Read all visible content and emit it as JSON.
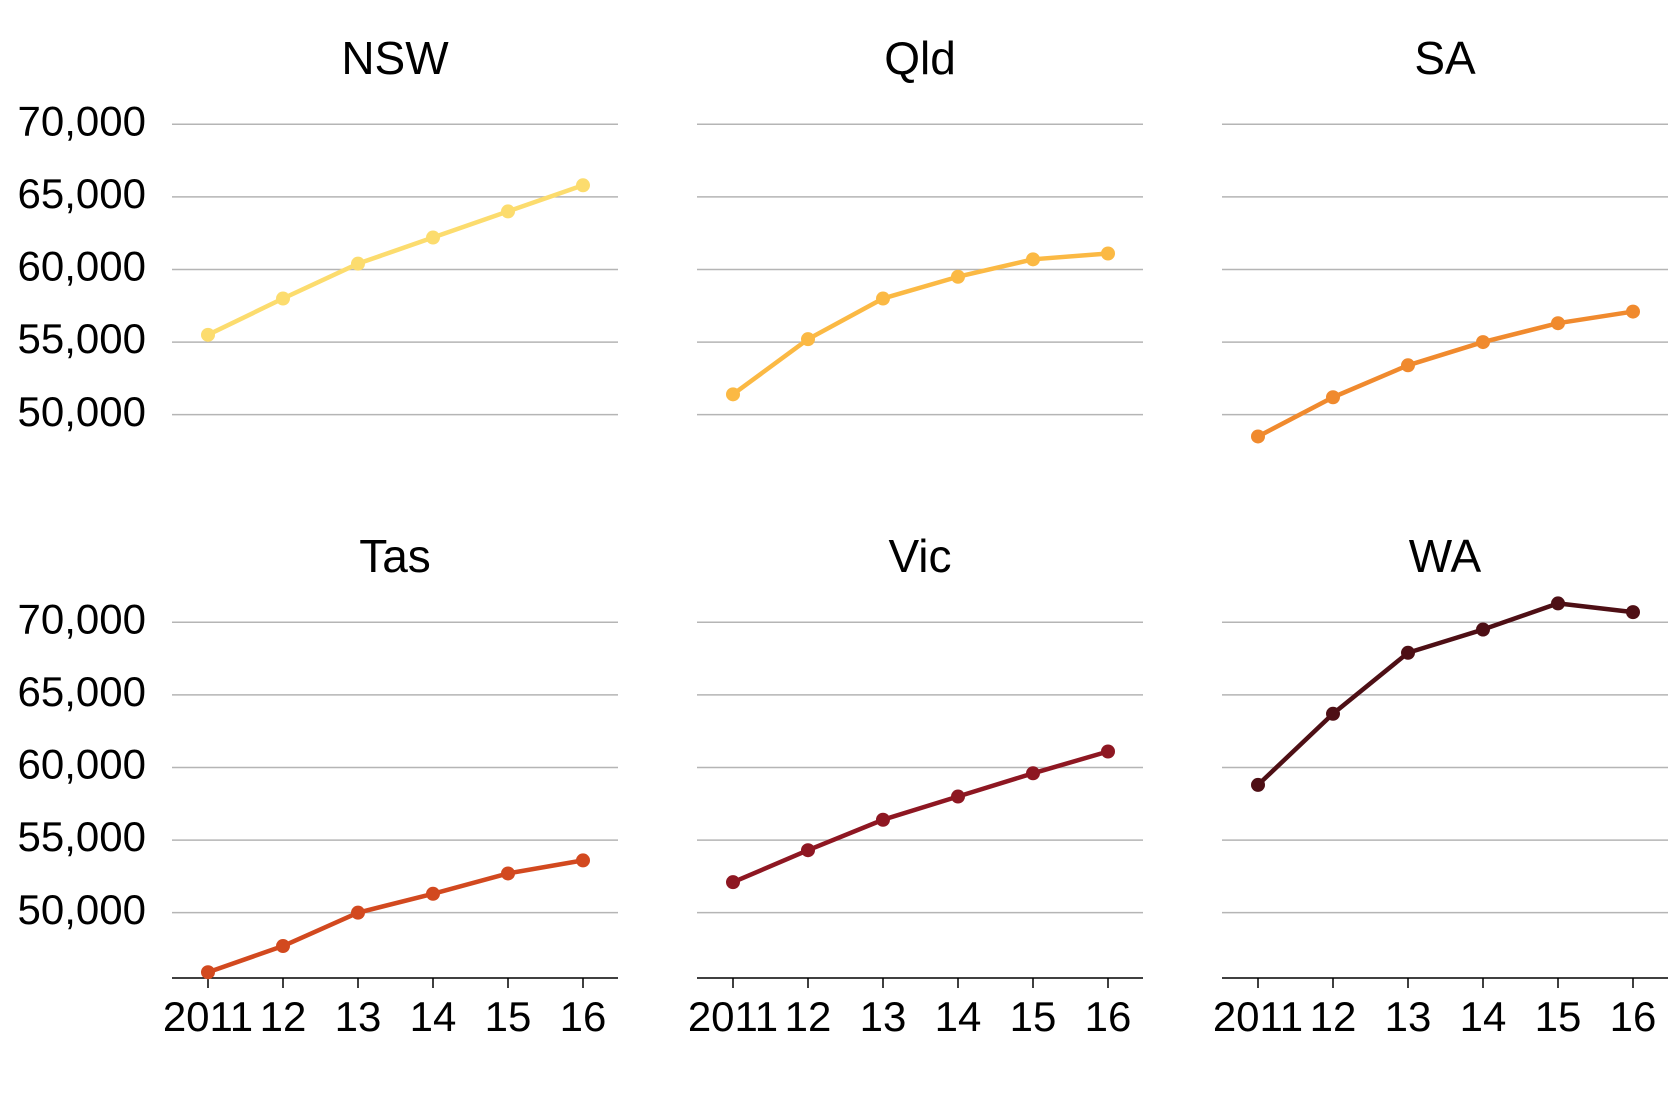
{
  "chart_data": {
    "type": "line",
    "layout": "small-multiples",
    "x": [
      "2011",
      "12",
      "13",
      "14",
      "15",
      "16"
    ],
    "y_ticks": [
      "50,000",
      "55,000",
      "60,000",
      "65,000",
      "70,000"
    ],
    "y_tick_values": [
      50000,
      55000,
      60000,
      65000,
      70000
    ],
    "ylim": [
      45500,
      72500
    ],
    "grid": true,
    "series": [
      {
        "name": "NSW",
        "color": "#fcdc6e",
        "values": [
          55500,
          58000,
          60400,
          62200,
          64000,
          65800
        ]
      },
      {
        "name": "Qld",
        "color": "#fbb944",
        "values": [
          51400,
          55200,
          58000,
          59500,
          60700,
          61100
        ]
      },
      {
        "name": "SA",
        "color": "#f08a2e",
        "values": [
          48500,
          51200,
          53400,
          55000,
          56300,
          57100
        ]
      },
      {
        "name": "Tas",
        "color": "#d2491f",
        "values": [
          45900,
          47700,
          50000,
          51300,
          52700,
          53600
        ]
      },
      {
        "name": "Vic",
        "color": "#8e1722",
        "values": [
          52100,
          54300,
          56400,
          58000,
          59600,
          61100
        ]
      },
      {
        "name": "WA",
        "color": "#4e0f15",
        "values": [
          58800,
          63700,
          67900,
          69500,
          71300,
          70700
        ]
      }
    ]
  }
}
